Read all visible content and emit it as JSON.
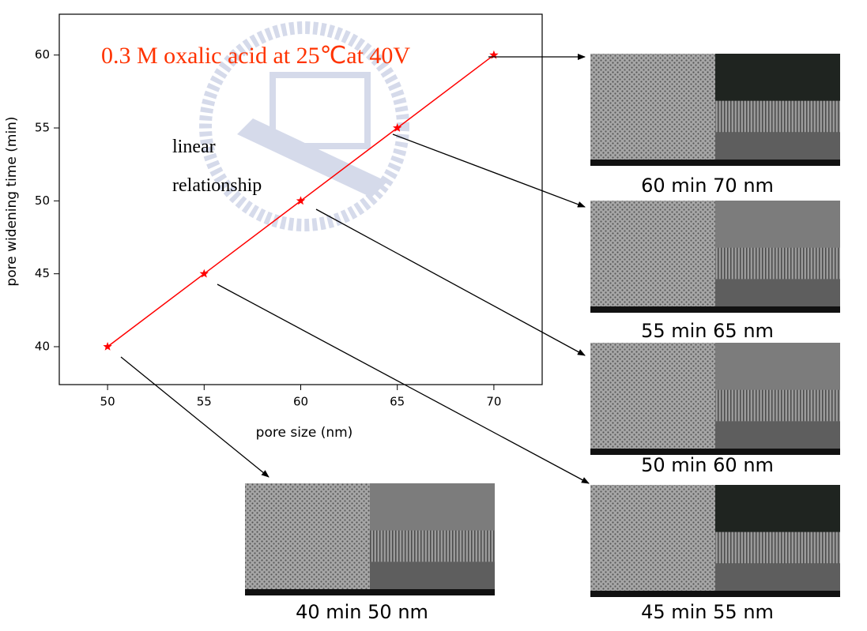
{
  "chart_data": {
    "type": "line",
    "xlabel": "pore size (nm)",
    "ylabel": "pore widening time (min)",
    "x": [
      50,
      55,
      60,
      65,
      70
    ],
    "series": [
      {
        "color": "#ff0000",
        "marker": "star",
        "values": [
          40,
          45,
          50,
          55,
          60
        ]
      }
    ],
    "xlim": [
      47.5,
      72.5
    ],
    "ylim": [
      37.4,
      62.8
    ],
    "xticks": [
      50,
      55,
      60,
      65,
      70
    ],
    "yticks": [
      40,
      45,
      50,
      55,
      60
    ],
    "annotations": [
      "0.3 M oxalic acid at 25℃at 40V",
      "linear",
      "relationship"
    ]
  },
  "images": [
    {
      "caption": "60 min 70 nm"
    },
    {
      "caption": "55 min 65 nm"
    },
    {
      "caption": "50 min 60 nm"
    },
    {
      "caption": "45 min 55 nm"
    },
    {
      "caption": "40 min 50 nm"
    }
  ]
}
